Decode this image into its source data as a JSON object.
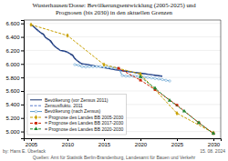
{
  "chart_data": {
    "type": "line",
    "title": "Wusterhausen/Dosse: Bevölkerungsentwicklung (2005-2025) und\nPrognosen (bis 2030) in den aktuellen Grenzen",
    "annotations": [
      "by: Hans E. Überlack",
      "Quellen: Amt für Statistik Berlin-Brandenburg, Landesamt für Bauen und Verkehr",
      "15. 08. 2024"
    ],
    "xlim": [
      2004.0,
      2031.0
    ],
    "ylim": [
      4900,
      6650
    ],
    "xticks": [
      2005,
      2010,
      2015,
      2020,
      2025,
      2030
    ],
    "yticks": [
      {
        "value": 5000,
        "label": "5.000"
      },
      {
        "value": 5200,
        "label": "5.200"
      },
      {
        "value": 5400,
        "label": "5.400"
      },
      {
        "value": 5600,
        "label": "5.600"
      },
      {
        "value": 5800,
        "label": "5.800"
      },
      {
        "value": 6000,
        "label": "6.000"
      },
      {
        "value": 6200,
        "label": "6.200"
      },
      {
        "value": 6400,
        "label": "6.400"
      },
      {
        "value": 6600,
        "label": "6.600"
      }
    ],
    "grid": true,
    "legend": "lower left",
    "series": [
      {
        "name": "Bevölkerung (vor Zensus 2011)",
        "color": "#1a3570",
        "line_style": "solid",
        "x": [
          2005,
          2005.3,
          2005.6,
          2006,
          2006.3,
          2006.7,
          2007,
          2007.3,
          2007.7,
          2008,
          2008.3,
          2008.7,
          2009,
          2009.3,
          2009.7,
          2010,
          2010.3,
          2010.7,
          2011,
          2011.3,
          2011.7,
          2012,
          2012.5,
          2013,
          2013.5,
          2014,
          2014.5,
          2015,
          2015.5,
          2016,
          2016.5,
          2017,
          2017.5,
          2018,
          2018.5,
          2019,
          2019.5,
          2020,
          2020.5,
          2021,
          2021.5,
          2022,
          2022.5,
          2023
        ],
        "values": [
          6580,
          6560,
          6530,
          6490,
          6465,
          6440,
          6390,
          6370,
          6340,
          6290,
          6255,
          6225,
          6200,
          6195,
          6185,
          6175,
          6155,
          6130,
          6080,
          6050,
          6020,
          6000,
          5995,
          5985,
          5975,
          5965,
          5955,
          5945,
          5935,
          5925,
          5915,
          5908,
          5900,
          5893,
          5886,
          5878,
          5870,
          5862,
          5855,
          5848,
          5840,
          5833,
          5825,
          5818
        ]
      },
      {
        "name": "Zensusfluktu. 2011",
        "color": "#5577cc",
        "line_style": "dashed",
        "x": [
          2005,
          2006,
          2007,
          2008,
          2009,
          2010,
          2011,
          2012,
          2013,
          2014,
          2015,
          2016,
          2017,
          2018,
          2019,
          2020,
          2021,
          2022,
          2023
        ],
        "values": [
          6578,
          6488,
          6388,
          6288,
          6198,
          6173,
          6078,
          5998,
          5988,
          5958,
          5948,
          5923,
          5905,
          5895,
          5875,
          5860,
          5852,
          5828,
          5815
        ]
      },
      {
        "name": "Bevölkerung (nach Zensus)",
        "color": "#5599cc",
        "line_style": "solid",
        "marker": "circle",
        "x": [
          2011,
          2011.5,
          2012,
          2012.5,
          2013,
          2013.5,
          2014,
          2014.5,
          2015,
          2015.5,
          2016,
          2016.5,
          2017,
          2017.5,
          2018,
          2018.5,
          2019,
          2019.3,
          2019.7,
          2020,
          2020.5,
          2021,
          2021.5,
          2022,
          2022.5,
          2023,
          2023.5,
          2024
        ],
        "values": [
          5990,
          5980,
          5960,
          5955,
          5960,
          5960,
          5960,
          5958,
          5955,
          5952,
          5948,
          5940,
          5935,
          5830,
          5820,
          5820,
          5820,
          5820,
          5820,
          5810,
          5805,
          5800,
          5793,
          5785,
          5778,
          5768,
          5758,
          5748
        ]
      },
      {
        "name": "= Prognose des Landes BB 2005-2030",
        "color": "#c8a000",
        "line_style": "dashed",
        "marker": "diamond",
        "x": [
          2005,
          2010,
          2015,
          2020,
          2025,
          2030
        ],
        "values": [
          6580,
          6420,
          5990,
          5850,
          5270,
          4980
        ]
      },
      {
        "name": "= Prognose des Landes BB 2017-2030",
        "color": "#cc2200",
        "line_style": "dashed",
        "marker": "square",
        "x": [
          2017,
          2020,
          2022,
          2025,
          2028,
          2030
        ],
        "values": [
          5935,
          5760,
          5620,
          5390,
          5130,
          4970
        ]
      },
      {
        "name": "= Prognose des Landes BB 2020-2030",
        "color": "#228833",
        "line_style": "dashed",
        "marker": "triangle",
        "x": [
          2020,
          2022,
          2024,
          2026,
          2028,
          2030
        ],
        "values": [
          5810,
          5640,
          5460,
          5300,
          5130,
          4970
        ]
      }
    ]
  }
}
